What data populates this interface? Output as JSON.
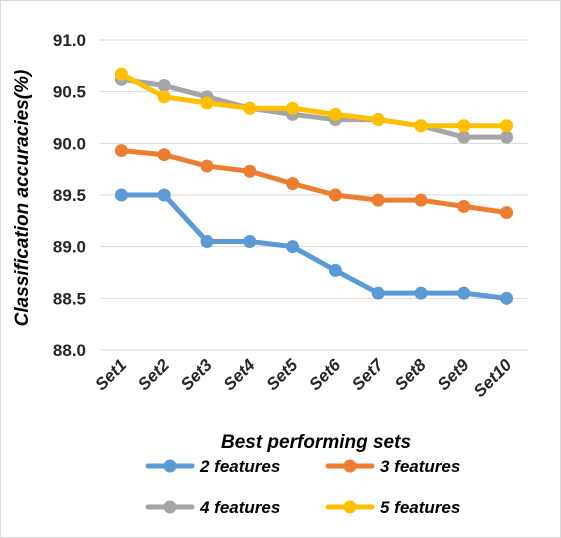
{
  "chart_data": {
    "type": "line",
    "title": "",
    "xlabel": "Best performing sets",
    "ylabel": "Classification accuracies(%)",
    "ylim": [
      88.0,
      91.0
    ],
    "yticks": [
      "88.0",
      "88.5",
      "89.0",
      "89.5",
      "90.0",
      "90.5",
      "91.0"
    ],
    "categories": [
      "Set1",
      "Set2",
      "Set3",
      "Set4",
      "Set5",
      "Set6",
      "Set7",
      "Set8",
      "Set9",
      "Set10"
    ],
    "grid": "horizontal",
    "legend_position": "bottom",
    "series": [
      {
        "name": "2 features",
        "color": "#5b9bd5",
        "values": [
          89.5,
          89.5,
          89.05,
          89.05,
          89.0,
          88.77,
          88.55,
          88.55,
          88.55,
          88.5
        ]
      },
      {
        "name": "3 features",
        "color": "#ed7d31",
        "values": [
          89.93,
          89.89,
          89.78,
          89.73,
          89.61,
          89.5,
          89.45,
          89.45,
          89.39,
          89.33
        ]
      },
      {
        "name": "4 features",
        "color": "#a5a5a5",
        "values": [
          90.62,
          90.56,
          90.45,
          90.34,
          90.28,
          90.23,
          90.23,
          90.17,
          90.06,
          90.06
        ]
      },
      {
        "name": "5 features",
        "color": "#ffc000",
        "values": [
          90.67,
          90.45,
          90.39,
          90.34,
          90.34,
          90.28,
          90.23,
          90.17,
          90.17,
          90.17
        ]
      }
    ]
  }
}
